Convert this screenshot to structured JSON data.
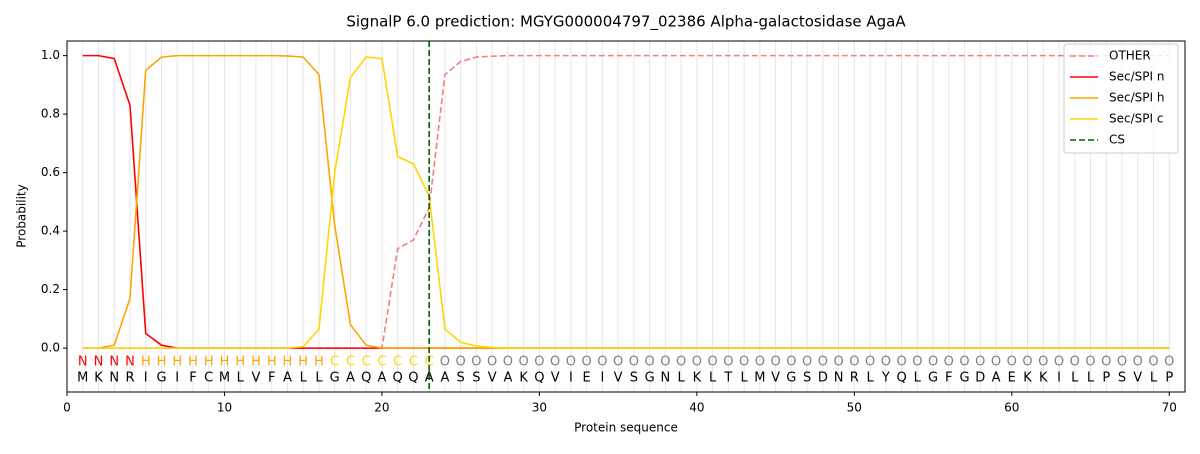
{
  "chart_data": {
    "type": "line",
    "title": "SignalP 6.0 prediction: MGYG000004797_02386 Alpha-galactosidase AgaA",
    "x_label": "Protein sequence",
    "y_label": "Probability",
    "xlim": [
      0,
      71
    ],
    "ylim": [
      -0.15,
      1.05
    ],
    "xticks": [
      0,
      10,
      20,
      30,
      40,
      50,
      60,
      70
    ],
    "yticks": [
      {
        "value": 0,
        "label": "0.0"
      },
      {
        "value": 0.2,
        "label": "0.2"
      },
      {
        "value": 0.4,
        "label": "0.4"
      },
      {
        "value": 0.6,
        "label": "0.6"
      },
      {
        "value": 0.8,
        "label": "0.8"
      },
      {
        "value": 1,
        "label": "1.0"
      }
    ],
    "grid": true,
    "legend": "upper right",
    "x": [
      1,
      2,
      3,
      4,
      5,
      6,
      7,
      8,
      9,
      10,
      11,
      12,
      13,
      14,
      15,
      16,
      17,
      18,
      19,
      20,
      21,
      22,
      23,
      24,
      25,
      26,
      27,
      28,
      29,
      30,
      31,
      32,
      33,
      34,
      35,
      36,
      37,
      38,
      39,
      40,
      41,
      42,
      43,
      44,
      45,
      46,
      47,
      48,
      49,
      50,
      51,
      52,
      53,
      54,
      55,
      56,
      57,
      58,
      59,
      60,
      61,
      62,
      63,
      64,
      65,
      66,
      67,
      68,
      69,
      70
    ],
    "series": [
      {
        "name": "OTHER",
        "color": "#f08080",
        "dashed": true,
        "values": [
          0,
          0,
          0,
          0,
          0,
          0,
          0,
          0,
          0,
          0,
          0,
          0,
          0,
          0,
          0,
          0,
          0,
          0,
          0,
          0,
          0.34,
          0.37,
          0.48,
          0.935,
          0.98,
          0.995,
          0.998,
          1,
          1,
          1,
          1,
          1,
          1,
          1,
          1,
          1,
          1,
          1,
          1,
          1,
          1,
          1,
          1,
          1,
          1,
          1,
          1,
          1,
          1,
          1,
          1,
          1,
          1,
          1,
          1,
          1,
          1,
          1,
          1,
          1,
          1,
          1,
          1,
          1,
          1,
          1,
          1,
          1,
          1,
          1
        ]
      },
      {
        "name": "Sec/SPI n",
        "color": "#ff0000",
        "dashed": false,
        "values": [
          1,
          1,
          0.99,
          0.83,
          0.05,
          0.01,
          0,
          0,
          0,
          0,
          0,
          0,
          0,
          0,
          0,
          0,
          0,
          0,
          0,
          0,
          0,
          0,
          0,
          0,
          0,
          0,
          0,
          0,
          0,
          0,
          0,
          0,
          0,
          0,
          0,
          0,
          0,
          0,
          0,
          0,
          0,
          0,
          0,
          0,
          0,
          0,
          0,
          0,
          0,
          0,
          0,
          0,
          0,
          0,
          0,
          0,
          0,
          0,
          0,
          0,
          0,
          0,
          0,
          0,
          0,
          0,
          0,
          0,
          0,
          0
        ]
      },
      {
        "name": "Sec/SPI h",
        "color": "#ffa500",
        "dashed": false,
        "values": [
          0,
          0,
          0.01,
          0.17,
          0.95,
          0.995,
          1,
          1,
          1,
          1,
          1,
          1,
          1,
          0.999,
          0.995,
          0.935,
          0.42,
          0.08,
          0.01,
          0,
          0,
          0,
          0,
          0,
          0,
          0,
          0,
          0,
          0,
          0,
          0,
          0,
          0,
          0,
          0,
          0,
          0,
          0,
          0,
          0,
          0,
          0,
          0,
          0,
          0,
          0,
          0,
          0,
          0,
          0,
          0,
          0,
          0,
          0,
          0,
          0,
          0,
          0,
          0,
          0,
          0,
          0,
          0,
          0,
          0,
          0,
          0,
          0,
          0,
          0
        ]
      },
      {
        "name": "Sec/SPI c",
        "color": "#ffd700",
        "dashed": false,
        "values": [
          0,
          0,
          0,
          0,
          0,
          0,
          0,
          0,
          0,
          0,
          0,
          0,
          0,
          0,
          0.005,
          0.065,
          0.6,
          0.925,
          0.995,
          0.99,
          0.655,
          0.63,
          0.52,
          0.065,
          0.02,
          0.007,
          0.002,
          0,
          0,
          0,
          0,
          0,
          0,
          0,
          0,
          0,
          0,
          0,
          0,
          0,
          0,
          0,
          0,
          0,
          0,
          0,
          0,
          0,
          0,
          0,
          0,
          0,
          0,
          0,
          0,
          0,
          0,
          0,
          0,
          0,
          0,
          0,
          0,
          0,
          0,
          0,
          0,
          0,
          0,
          0
        ]
      }
    ],
    "cs": {
      "name": "CS",
      "x": 23,
      "color": "#006400"
    },
    "labels": [
      "N",
      "N",
      "N",
      "N",
      "H",
      "H",
      "H",
      "H",
      "H",
      "H",
      "H",
      "H",
      "H",
      "H",
      "H",
      "H",
      "C",
      "C",
      "C",
      "C",
      "C",
      "C",
      "C",
      "O",
      "O",
      "O",
      "O",
      "O",
      "O",
      "O",
      "O",
      "O",
      "O",
      "O",
      "O",
      "O",
      "O",
      "O",
      "O",
      "O",
      "O",
      "O",
      "O",
      "O",
      "O",
      "O",
      "O",
      "O",
      "O",
      "O",
      "O",
      "O",
      "O",
      "O",
      "O",
      "O",
      "O",
      "O",
      "O",
      "O",
      "O",
      "O",
      "O",
      "O",
      "O",
      "O",
      "O",
      "O",
      "O",
      "O"
    ],
    "label_colors": {
      "N": "#ff0000",
      "H": "#ffa500",
      "C": "#ffd700",
      "O": "#808080"
    },
    "residues": [
      "M",
      "K",
      "N",
      "R",
      "I",
      "G",
      "I",
      "F",
      "C",
      "M",
      "L",
      "V",
      "F",
      "A",
      "L",
      "L",
      "G",
      "A",
      "Q",
      "A",
      "Q",
      "Q",
      "A",
      "A",
      "S",
      "S",
      "V",
      "A",
      "K",
      "Q",
      "V",
      "I",
      "E",
      "I",
      "V",
      "S",
      "G",
      "N",
      "L",
      "K",
      "L",
      "T",
      "L",
      "M",
      "V",
      "G",
      "S",
      "D",
      "N",
      "R",
      "L",
      "Y",
      "Q",
      "L",
      "G",
      "F",
      "G",
      "D",
      "A",
      "E",
      "K",
      "K",
      "I",
      "L",
      "L",
      "P",
      "S",
      "V",
      "L",
      "P"
    ]
  }
}
